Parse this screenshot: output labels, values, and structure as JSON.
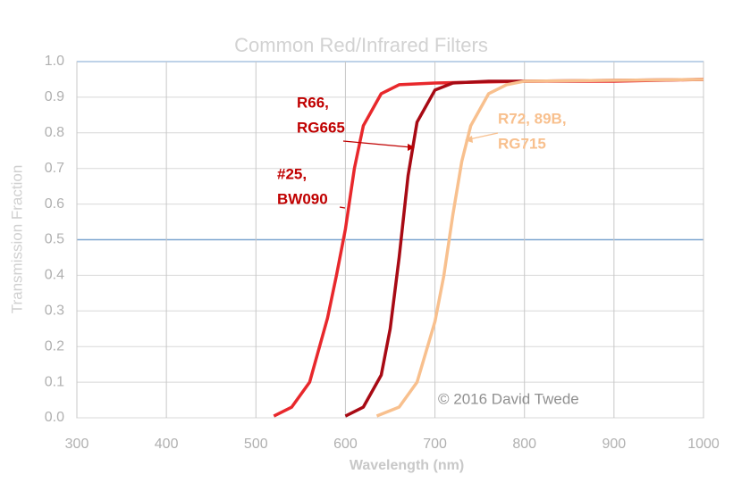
{
  "chart_data": {
    "type": "line",
    "title": "Common Red/Infrared Filters",
    "x_label": "Wavelength (nm)",
    "y_label": "Transmission Fraction",
    "xlim": [
      300,
      1000
    ],
    "xticks": [
      300,
      400,
      500,
      600,
      700,
      800,
      900,
      1000
    ],
    "ylim": [
      0,
      1
    ],
    "yticks": [
      {
        "value": 0,
        "label": "0.0"
      },
      0.1,
      0.2,
      0.3,
      0.4,
      0.5,
      0.6,
      0.7,
      0.8,
      0.9,
      {
        "value": 1,
        "label": "1.0"
      }
    ],
    "grid": true,
    "reference_line": 0.5,
    "series": [
      {
        "name": "#25, BW090",
        "color": "#e8282c",
        "x": [
          520,
          540,
          560,
          580,
          590,
          600,
          610,
          620,
          640,
          660,
          700,
          800,
          900,
          1000
        ],
        "values": [
          0.005,
          0.03,
          0.1,
          0.28,
          0.4,
          0.53,
          0.7,
          0.82,
          0.91,
          0.935,
          0.94,
          0.945,
          0.945,
          0.95
        ]
      },
      {
        "name": "R66, RG665",
        "color": "#a80a14",
        "x": [
          600,
          620,
          640,
          650,
          660,
          670,
          680,
          700,
          720,
          760,
          800,
          1000
        ],
        "values": [
          0.005,
          0.03,
          0.12,
          0.25,
          0.45,
          0.68,
          0.83,
          0.92,
          0.94,
          0.945,
          0.945,
          0.95
        ]
      },
      {
        "name": "R72, 89B, RG715",
        "color": "#f8c08e",
        "x": [
          635,
          660,
          680,
          700,
          710,
          720,
          730,
          740,
          760,
          780,
          800,
          1000
        ],
        "values": [
          0.005,
          0.03,
          0.1,
          0.27,
          0.4,
          0.57,
          0.72,
          0.82,
          0.91,
          0.935,
          0.945,
          0.95
        ]
      }
    ],
    "annotations": [
      {
        "lines": [
          "R66,",
          "RG665"
        ],
        "color": "#c00000"
      },
      {
        "lines": [
          "#25,",
          "BW090"
        ],
        "color": "#c00000"
      },
      {
        "lines": [
          "R72, 89B,",
          "RG715"
        ],
        "color": "#f8c08e"
      },
      {
        "lines": [
          "© 2016 David Twede"
        ],
        "color": "#909090"
      }
    ]
  }
}
